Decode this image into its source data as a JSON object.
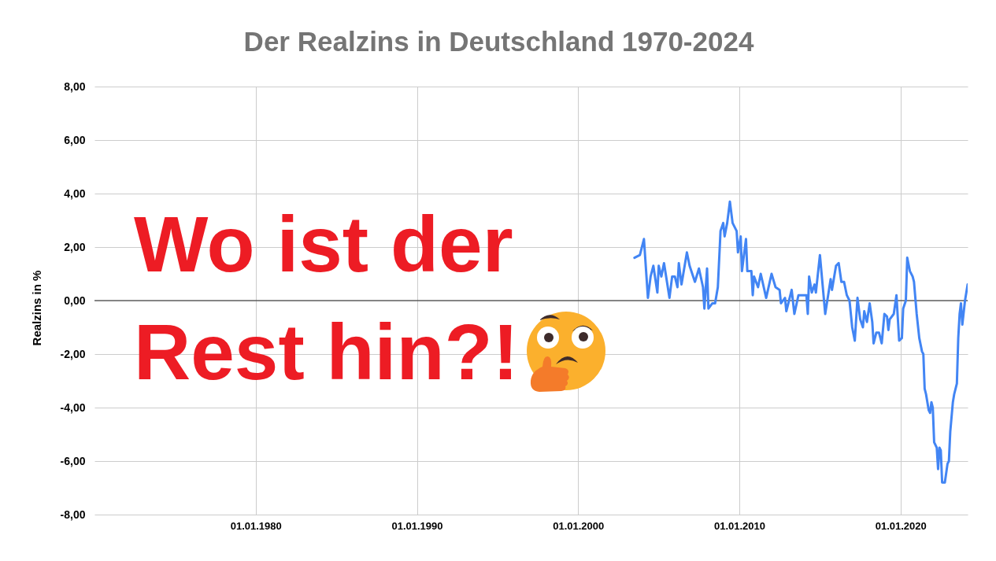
{
  "chart_data": {
    "type": "line",
    "title": "Der Realzins in Deutschland 1970-2024",
    "ylabel": "Realzins in %",
    "annotations": [
      "Wo ist der Rest hin?!"
    ],
    "x": [
      "2003-07",
      "2003-11",
      "2004-02",
      "2004-05",
      "2004-07",
      "2004-09",
      "2004-12",
      "2005-01",
      "2005-03",
      "2005-05",
      "2005-09",
      "2005-11",
      "2006-01",
      "2006-03",
      "2006-04",
      "2006-06",
      "2006-10",
      "2006-12",
      "2007-04",
      "2007-07",
      "2007-10",
      "2007-11",
      "2008-01",
      "2008-02",
      "2008-05",
      "2008-07",
      "2008-09",
      "2008-11",
      "2009-01",
      "2009-02",
      "2009-04",
      "2009-06",
      "2009-08",
      "2009-11",
      "2009-12",
      "2010-02",
      "2010-03",
      "2010-06",
      "2010-07",
      "2010-10",
      "2010-11",
      "2010-12",
      "2011-03",
      "2011-05",
      "2011-09",
      "2012-01",
      "2012-04",
      "2012-07",
      "2012-08",
      "2012-11",
      "2012-12",
      "2013-04",
      "2013-06",
      "2013-09",
      "2014-01",
      "2014-03",
      "2014-04",
      "2014-05",
      "2014-07",
      "2014-09",
      "2014-10",
      "2015-01",
      "2015-05",
      "2015-09",
      "2015-10",
      "2016-01",
      "2016-03",
      "2016-05",
      "2016-07",
      "2016-09",
      "2016-11",
      "2017-01",
      "2017-03",
      "2017-05",
      "2017-07",
      "2017-09",
      "2017-10",
      "2017-12",
      "2018-02",
      "2018-04",
      "2018-05",
      "2018-07",
      "2018-09",
      "2018-11",
      "2019-01",
      "2019-03",
      "2019-04",
      "2019-05",
      "2019-08",
      "2019-10",
      "2019-12",
      "2020-02",
      "2020-03",
      "2020-05",
      "2020-06",
      "2020-08",
      "2020-10",
      "2020-11",
      "2021-01",
      "2021-03",
      "2021-05",
      "2021-06",
      "2021-07",
      "2021-08",
      "2021-10",
      "2021-11",
      "2021-12",
      "2022-01",
      "2022-02",
      "2022-04",
      "2022-05",
      "2022-06",
      "2022-07",
      "2022-08",
      "2022-10",
      "2022-12",
      "2023-01",
      "2023-02",
      "2023-04",
      "2023-05",
      "2023-07",
      "2023-08",
      "2023-09",
      "2023-10",
      "2023-11",
      "2024-01",
      "2024-03"
    ],
    "series": [
      {
        "color": "#4285f4",
        "values": [
          1.6,
          1.7,
          2.3,
          0.1,
          0.9,
          1.3,
          0.3,
          1.3,
          0.9,
          1.4,
          0.1,
          0.9,
          0.9,
          0.5,
          1.4,
          0.6,
          1.8,
          1.3,
          0.7,
          1.2,
          0.5,
          -0.3,
          1.2,
          -0.3,
          -0.1,
          -0.1,
          0.5,
          2.6,
          2.9,
          2.4,
          2.9,
          3.7,
          2.9,
          2.6,
          1.8,
          2.4,
          1.1,
          2.3,
          1.1,
          1.1,
          0.2,
          0.9,
          0.5,
          1.0,
          0.1,
          1.0,
          0.5,
          0.4,
          -0.1,
          0.1,
          -0.4,
          0.4,
          -0.5,
          0.2,
          0.2,
          0.2,
          -0.5,
          0.9,
          0.3,
          0.6,
          0.3,
          1.7,
          -0.5,
          0.8,
          0.4,
          1.3,
          1.4,
          0.7,
          0.7,
          0.2,
          0.0,
          -1.0,
          -1.5,
          0.1,
          -0.7,
          -1.0,
          -0.4,
          -0.8,
          -0.1,
          -0.8,
          -1.6,
          -1.2,
          -1.2,
          -1.6,
          -0.5,
          -0.6,
          -1.1,
          -0.7,
          -0.5,
          0.2,
          -1.5,
          -1.4,
          -0.3,
          0.0,
          1.6,
          1.1,
          0.9,
          0.7,
          -0.5,
          -1.4,
          -1.9,
          -2.0,
          -3.3,
          -3.5,
          -4.1,
          -4.2,
          -3.8,
          -4.0,
          -5.3,
          -5.5,
          -6.3,
          -5.5,
          -5.6,
          -6.8,
          -6.8,
          -6.1,
          -6.0,
          -4.9,
          -3.8,
          -3.5,
          -3.1,
          -1.4,
          -0.5,
          -0.1,
          -0.9,
          0.0,
          0.6
        ]
      }
    ],
    "xlim": [
      "1970-01",
      "2024-03"
    ],
    "xticks": [
      {
        "value": "1980-01-01",
        "label": "01.01.1980"
      },
      {
        "value": "1990-01-01",
        "label": "01.01.1990"
      },
      {
        "value": "2000-01-01",
        "label": "01.01.2000"
      },
      {
        "value": "2010-01-01",
        "label": "01.01.2010"
      },
      {
        "value": "2020-01-01",
        "label": "01.01.2020"
      }
    ],
    "ylim": [
      -8,
      8
    ],
    "yticks": [
      {
        "value": -8,
        "label": "-8,00"
      },
      {
        "value": -6,
        "label": "-6,00"
      },
      {
        "value": -4,
        "label": "-4,00"
      },
      {
        "value": -2,
        "label": "-2,00"
      },
      {
        "value": 0,
        "label": "0,00"
      },
      {
        "value": 2,
        "label": "2,00"
      },
      {
        "value": 4,
        "label": "4,00"
      },
      {
        "value": 6,
        "label": "6,00"
      },
      {
        "value": 8,
        "label": "8,00"
      }
    ],
    "ref_lines": [
      {
        "axis": "y",
        "value": 0,
        "color": "#222222"
      }
    ],
    "grid": true,
    "line_style": "solid"
  }
}
